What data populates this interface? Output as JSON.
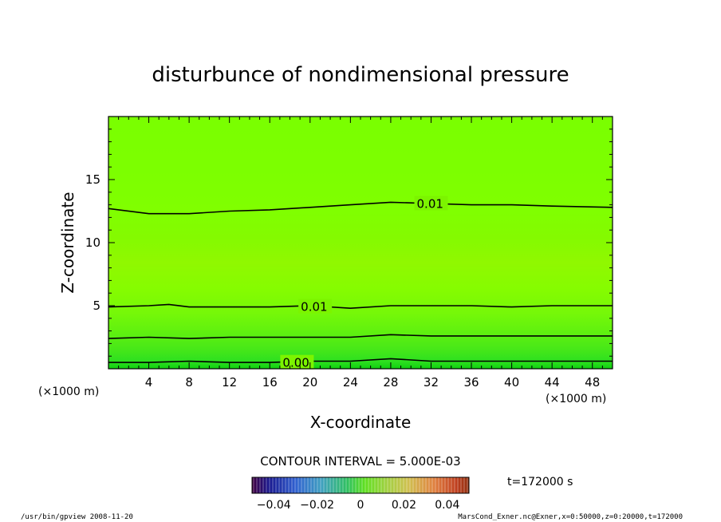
{
  "chart_data": {
    "type": "heatmap",
    "title": "disturbunce of nondimensional pressure",
    "xlabel": "X-coordinate",
    "ylabel": "Z-coordinate",
    "x_unit": "(×1000 m)",
    "y_unit": "(×1000 m)",
    "xlim": [
      0,
      50
    ],
    "ylim": [
      0,
      20
    ],
    "x_ticks": [
      "4",
      "8",
      "12",
      "16",
      "20",
      "24",
      "28",
      "32",
      "36",
      "40",
      "44",
      "48"
    ],
    "y_ticks": [
      "5",
      "10",
      "15"
    ],
    "x_tick_values": [
      4,
      8,
      12,
      16,
      20,
      24,
      28,
      32,
      36,
      40,
      44,
      48
    ],
    "y_tick_values": [
      5,
      10,
      15
    ],
    "contours": [
      {
        "level": 0.01,
        "label": "0.01",
        "points": [
          [
            0,
            12.7
          ],
          [
            4,
            12.3
          ],
          [
            8,
            12.3
          ],
          [
            12,
            12.5
          ],
          [
            16,
            12.6
          ],
          [
            20,
            12.8
          ],
          [
            24,
            13.0
          ],
          [
            28,
            13.2
          ],
          [
            32,
            13.1
          ],
          [
            36,
            13.0
          ],
          [
            40,
            13.0
          ],
          [
            44,
            12.9
          ],
          [
            50,
            12.8
          ]
        ]
      },
      {
        "level": 0.01,
        "label": "0.01",
        "points": [
          [
            0,
            4.9
          ],
          [
            4,
            5.0
          ],
          [
            6,
            5.1
          ],
          [
            8,
            4.9
          ],
          [
            12,
            4.9
          ],
          [
            16,
            4.9
          ],
          [
            20,
            5.0
          ],
          [
            24,
            4.8
          ],
          [
            28,
            5.0
          ],
          [
            32,
            5.0
          ],
          [
            36,
            5.0
          ],
          [
            40,
            4.9
          ],
          [
            44,
            5.0
          ],
          [
            50,
            5.0
          ]
        ]
      },
      {
        "level": 0.005,
        "label": "",
        "points": [
          [
            0,
            2.4
          ],
          [
            4,
            2.5
          ],
          [
            8,
            2.4
          ],
          [
            12,
            2.5
          ],
          [
            16,
            2.5
          ],
          [
            20,
            2.5
          ],
          [
            24,
            2.5
          ],
          [
            28,
            2.7
          ],
          [
            32,
            2.6
          ],
          [
            36,
            2.6
          ],
          [
            40,
            2.6
          ],
          [
            44,
            2.6
          ],
          [
            50,
            2.6
          ]
        ]
      },
      {
        "level": 0.0,
        "label": "0.00",
        "points": [
          [
            0,
            0.5
          ],
          [
            4,
            0.5
          ],
          [
            8,
            0.6
          ],
          [
            12,
            0.5
          ],
          [
            16,
            0.5
          ],
          [
            20,
            0.6
          ],
          [
            24,
            0.6
          ],
          [
            28,
            0.8
          ],
          [
            32,
            0.6
          ],
          [
            36,
            0.6
          ],
          [
            40,
            0.6
          ],
          [
            44,
            0.6
          ],
          [
            50,
            0.6
          ]
        ]
      }
    ],
    "contour_interval": "CONTOUR INTERVAL = 5.000E-03",
    "colorbar_ticks": [
      "−0.04",
      "−0.02",
      "0",
      "0.02",
      "0.04"
    ],
    "colorbar_range": [
      -0.05,
      0.05
    ],
    "time_label": "t=172000 s",
    "footer_left": "/usr/bin/gpview   2008-11-20",
    "footer_right": "MarsCond_Exner.nc@Exner,x=0:50000,z=0:20000,t=172000",
    "colors": {
      "field_low": "#00dd00",
      "field_mid": "#80ff00",
      "field_high": "#88f000",
      "contour": "#000000"
    }
  }
}
